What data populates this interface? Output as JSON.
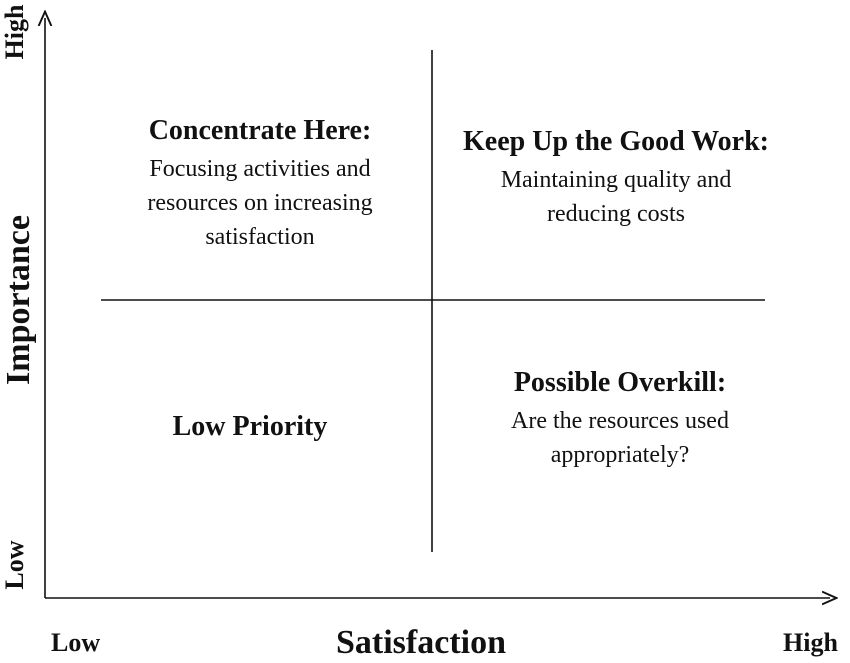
{
  "axes": {
    "x_title": "Satisfaction",
    "y_title": "Importance",
    "x_low": "Low",
    "x_high": "High",
    "y_low": "Low",
    "y_high": "High"
  },
  "quadrants": {
    "top_left": {
      "title": "Concentrate Here:",
      "line1": "Focusing activities and",
      "line2": "resources on increasing",
      "line3": "satisfaction"
    },
    "top_right": {
      "title": "Keep Up the Good Work:",
      "line1": "Maintaining quality and",
      "line2": "reducing costs"
    },
    "bottom_left": {
      "title": "Low Priority"
    },
    "bottom_right": {
      "title": "Possible Overkill:",
      "line1": "Are the resources used",
      "line2": "appropriately?"
    }
  }
}
